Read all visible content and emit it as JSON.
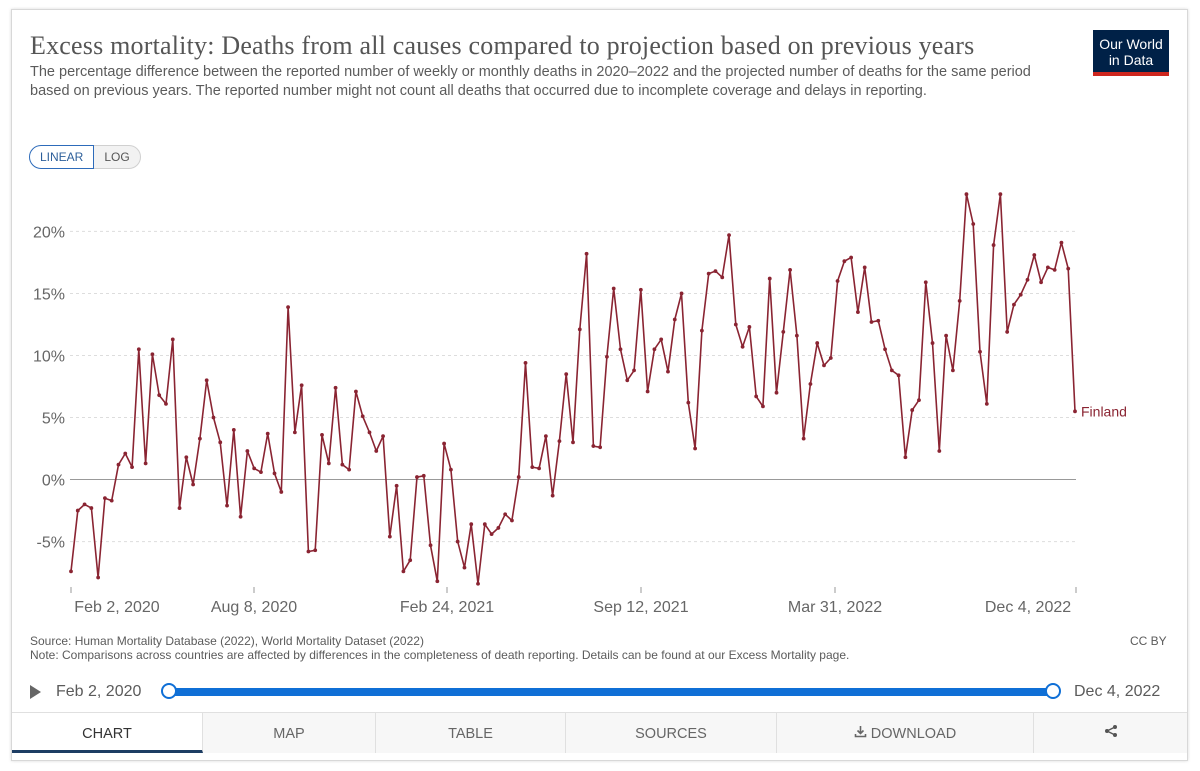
{
  "title": "Excess mortality: Deaths from all causes compared to projection based on previous years",
  "subtitle": "The percentage difference between the reported number of weekly or monthly deaths in 2020–2022 and the projected number of deaths for the same period based on previous years. The reported number might not count all deaths that occurred due to incomplete coverage and delays in reporting.",
  "logo": {
    "line1": "Our World",
    "line2": "in Data"
  },
  "scale_toggle": {
    "linear": "LINEAR",
    "log": "LOG"
  },
  "chart_data": {
    "type": "line",
    "title": "Excess mortality: Deaths from all causes compared to projection based on previous years",
    "xlabel": "",
    "ylabel": "",
    "x_range": [
      "Feb 2, 2020",
      "Dec 4, 2022"
    ],
    "x_ticks": [
      "Feb 2, 2020",
      "Aug 8, 2020",
      "Feb 24, 2021",
      "Sep 12, 2021",
      "Mar 31, 2022",
      "Dec 4, 2022"
    ],
    "y_ticks": [
      -5,
      0,
      5,
      10,
      15,
      20
    ],
    "y_tick_labels": [
      "-5%",
      "0%",
      "5%",
      "10%",
      "15%",
      "20%"
    ],
    "ylim": [
      -8.5,
      23.5
    ],
    "grid": true,
    "series": [
      {
        "name": "Finland",
        "color": "#8a2432",
        "values": [
          -7.4,
          -2.5,
          -2.0,
          -2.3,
          -7.9,
          -1.5,
          -1.7,
          1.2,
          2.1,
          1.0,
          10.5,
          1.3,
          10.1,
          6.8,
          6.1,
          11.3,
          -2.3,
          1.8,
          -0.4,
          3.3,
          8.0,
          5.0,
          3.0,
          -2.1,
          4.0,
          -3.0,
          2.3,
          0.9,
          0.6,
          3.7,
          0.5,
          -1.0,
          13.9,
          3.8,
          7.6,
          -5.8,
          -5.7,
          3.6,
          1.3,
          7.4,
          1.2,
          0.8,
          7.1,
          5.1,
          3.8,
          2.3,
          3.5,
          -4.6,
          -0.5,
          -7.4,
          -6.5,
          0.2,
          0.3,
          -5.3,
          -8.2,
          2.9,
          0.8,
          -5.0,
          -7.1,
          -3.6,
          -8.4,
          -3.6,
          -4.4,
          -3.9,
          -2.8,
          -3.3,
          0.2,
          9.4,
          1.0,
          0.9,
          3.5,
          -1.3,
          3.1,
          8.5,
          3.0,
          12.1,
          18.2,
          2.7,
          2.6,
          9.9,
          15.4,
          10.5,
          8.0,
          8.8,
          15.3,
          7.1,
          10.5,
          11.3,
          8.7,
          12.9,
          15.0,
          6.2,
          2.5,
          12.0,
          16.6,
          16.8,
          16.3,
          19.7,
          12.5,
          10.7,
          12.3,
          6.7,
          5.9,
          16.2,
          7.0,
          11.9,
          16.9,
          11.6,
          3.3,
          7.7,
          11.0,
          9.2,
          9.8,
          16.0,
          17.6,
          17.9,
          13.5,
          17.1,
          12.7,
          12.8,
          10.5,
          8.8,
          8.4,
          1.8,
          5.6,
          6.4,
          15.9,
          11.0,
          2.3,
          11.6,
          8.8,
          14.4,
          23.0,
          20.6,
          10.3,
          6.1,
          18.9,
          23.0,
          11.9,
          14.1,
          14.9,
          16.1,
          18.1,
          15.9,
          17.1,
          16.9,
          19.1,
          17.0,
          5.5
        ]
      }
    ],
    "series_label": "Finland"
  },
  "source_line": "Source: Human Mortality Database (2022), World Mortality Dataset (2022)",
  "note_line": "Note: Comparisons across countries are affected by differences in the completeness of death reporting. Details can be found at our Excess Mortality page.",
  "license": "CC BY",
  "timeline": {
    "start": "Feb 2, 2020",
    "end": "Dec 4, 2022"
  },
  "tabs": {
    "chart": "CHART",
    "map": "MAP",
    "table": "TABLE",
    "sources": "SOURCES",
    "download": "DOWNLOAD"
  },
  "colors": {
    "line": "#8a2432",
    "accent": "#0f6fd6",
    "logo_bg": "#002147",
    "logo_bar": "#ce261e"
  }
}
